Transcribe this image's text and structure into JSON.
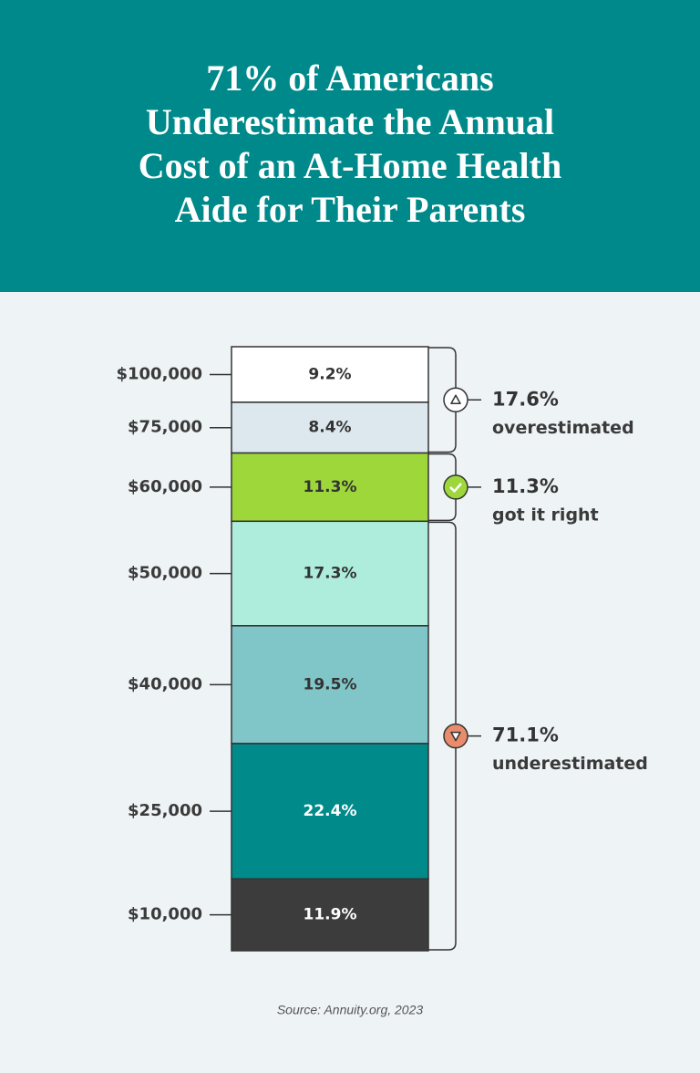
{
  "chart_data": {
    "type": "stacked-column",
    "title": [
      "71% of Americans",
      "Underestimate the Annual",
      "Cost of an At-Home Health",
      "Aide for Their Parents"
    ],
    "categories": [
      "$100,000",
      "$75,000",
      "$60,000",
      "$50,000",
      "$40,000",
      "$25,000",
      "$10,000"
    ],
    "values": [
      9.2,
      8.4,
      11.3,
      17.3,
      19.5,
      22.4,
      11.9
    ],
    "value_labels": [
      "9.2%",
      "8.4%",
      "11.3%",
      "17.3%",
      "19.5%",
      "22.4%",
      "11.9%"
    ],
    "colors": [
      "#ffffff",
      "#dce8ee",
      "#9dd73a",
      "#aeeddc",
      "#80c5c8",
      "#008a8a",
      "#3c3c3c"
    ],
    "ylim": [
      0,
      100
    ],
    "groups": [
      {
        "value": 17.6,
        "label": "17.6%",
        "caption": "overestimated",
        "color": "#ffffff"
      },
      {
        "value": 11.3,
        "label": "11.3%",
        "caption": "got it right",
        "color": "#9dd73a"
      },
      {
        "value": 71.1,
        "label": "71.1%",
        "caption": "underestimated",
        "color": "#e98c6c"
      }
    ],
    "source": "Source: Annuity.org, 2023"
  }
}
